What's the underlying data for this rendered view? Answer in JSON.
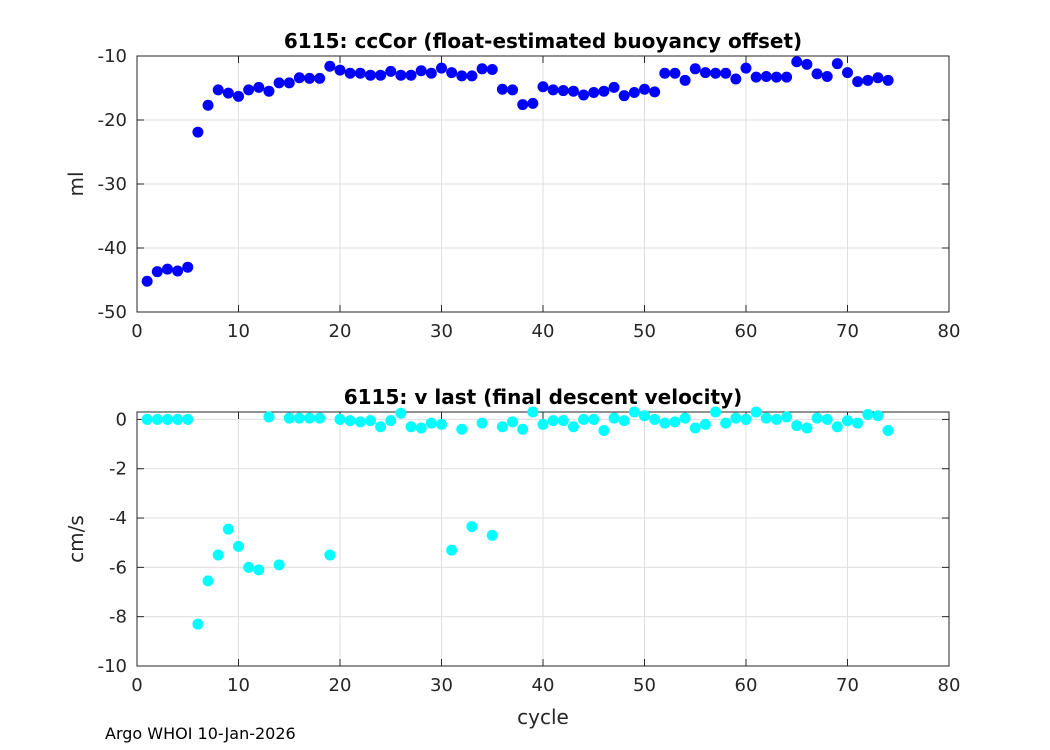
{
  "footer": "Argo WHOI 10-Jan-2026",
  "chart_data": [
    {
      "type": "scatter",
      "title": "6115: ccCor (float-estimated buoyancy offset)",
      "xlabel": "",
      "ylabel": "ml",
      "xlim": [
        0,
        80
      ],
      "ylim": [
        -50,
        -10
      ],
      "xticks": [
        0,
        10,
        20,
        30,
        40,
        50,
        60,
        70,
        80
      ],
      "yticks": [
        -50,
        -40,
        -30,
        -20,
        -10
      ],
      "grid": true,
      "color": "#0000ff",
      "x": [
        1,
        2,
        3,
        4,
        5,
        6,
        7,
        8,
        9,
        10,
        11,
        12,
        13,
        14,
        15,
        16,
        17,
        18,
        19,
        20,
        21,
        22,
        23,
        24,
        25,
        26,
        27,
        28,
        29,
        30,
        31,
        32,
        33,
        34,
        35,
        36,
        37,
        38,
        39,
        40,
        41,
        42,
        43,
        44,
        45,
        46,
        47,
        48,
        49,
        50,
        51,
        52,
        53,
        54,
        55,
        56,
        57,
        58,
        59,
        60,
        61,
        62,
        63,
        64,
        65,
        66,
        67,
        68,
        69,
        70,
        71,
        72,
        73,
        74
      ],
      "y": [
        -45.2,
        -43.7,
        -43.3,
        -43.6,
        -43.0,
        -21.9,
        -17.7,
        -15.3,
        -15.8,
        -16.3,
        -15.3,
        -14.9,
        -15.5,
        -14.2,
        -14.2,
        -13.4,
        -13.5,
        -13.5,
        -11.6,
        -12.2,
        -12.7,
        -12.7,
        -13.0,
        -13.0,
        -12.4,
        -13.0,
        -13.0,
        -12.3,
        -12.7,
        -11.9,
        -12.6,
        -13.1,
        -13.1,
        -12.0,
        -12.1,
        -15.2,
        -15.3,
        -17.6,
        -17.4,
        -14.8,
        -15.3,
        -15.4,
        -15.5,
        -16.1,
        -15.7,
        -15.5,
        -14.9,
        -16.2,
        -15.7,
        -15.2,
        -15.6,
        -12.7,
        -12.7,
        -13.8,
        -12.0,
        -12.6,
        -12.7,
        -12.7,
        -13.6,
        -11.9,
        -13.3,
        -13.2,
        -13.3,
        -13.3,
        -10.9,
        -11.3,
        -12.8,
        -13.2,
        -11.2,
        -12.6,
        -14.0,
        -13.8,
        -13.4,
        -13.8
      ]
    },
    {
      "type": "scatter",
      "title": "6115: v last (final descent velocity)",
      "xlabel": "cycle",
      "ylabel": "cm/s",
      "xlim": [
        0,
        80
      ],
      "ylim": [
        -10,
        0.3
      ],
      "xticks": [
        0,
        10,
        20,
        30,
        40,
        50,
        60,
        70,
        80
      ],
      "yticks": [
        -10,
        -8,
        -6,
        -4,
        -2,
        0
      ],
      "grid": true,
      "color": "#00ffff",
      "x": [
        1,
        2,
        3,
        4,
        5,
        6,
        7,
        8,
        9,
        10,
        11,
        12,
        13,
        14,
        15,
        16,
        17,
        18,
        19,
        20,
        21,
        22,
        23,
        24,
        25,
        26,
        27,
        28,
        29,
        30,
        31,
        32,
        33,
        34,
        35,
        36,
        37,
        38,
        39,
        40,
        41,
        42,
        43,
        44,
        45,
        46,
        47,
        48,
        49,
        50,
        51,
        52,
        53,
        54,
        55,
        56,
        57,
        58,
        59,
        60,
        61,
        62,
        63,
        64,
        65,
        66,
        67,
        68,
        69,
        70,
        71,
        72,
        73,
        74
      ],
      "y": [
        0.0,
        0.0,
        0.0,
        0.0,
        0.0,
        -8.3,
        -6.55,
        -5.5,
        -4.45,
        -5.15,
        -6.0,
        -6.1,
        0.1,
        -5.9,
        0.05,
        0.05,
        0.05,
        0.05,
        -5.5,
        0.0,
        -0.05,
        -0.1,
        -0.05,
        -0.3,
        -0.05,
        0.25,
        -0.3,
        -0.35,
        -0.15,
        -0.2,
        -5.3,
        -0.4,
        -4.35,
        -0.15,
        -4.7,
        -0.3,
        -0.1,
        -0.4,
        0.3,
        -0.2,
        -0.05,
        -0.05,
        -0.3,
        0.0,
        0.0,
        -0.45,
        0.05,
        -0.05,
        0.3,
        0.15,
        0.0,
        -0.15,
        -0.1,
        0.05,
        -0.35,
        -0.2,
        0.3,
        -0.15,
        0.05,
        0.0,
        0.3,
        0.05,
        0.0,
        0.1,
        -0.25,
        -0.35,
        0.05,
        0.0,
        -0.3,
        -0.05,
        -0.15,
        0.2,
        0.15,
        -0.45
      ]
    }
  ]
}
